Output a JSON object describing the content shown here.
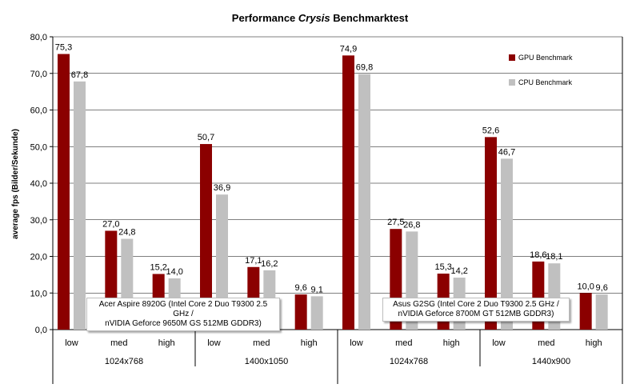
{
  "title_prefix": "Performance ",
  "title_em": "Crysis",
  "title_suffix": " Benchmarktest",
  "legend": [
    {
      "name": "GPU Benchmark",
      "color": "#8b0000"
    },
    {
      "name": "CPU Benchmark",
      "color": "#c0c0c0"
    }
  ],
  "notes": [
    {
      "line1": "Acer Aspire 8920G (Intel Core 2 Duo T9300 2.5 GHz /",
      "line2": "nVIDIA Geforce 9650M GS 512MB GDDR3)"
    },
    {
      "line1": "Asus G2SG (Intel Core 2 Duo T9300 2.5 GHz /",
      "line2": "nVIDIA Geforce 8700M GT 512MB GDDR3)"
    }
  ],
  "chart_data": {
    "type": "bar",
    "title": "Performance Crysis Benchmarktest",
    "ylabel": "average fps (Bilder/Sekunde)",
    "xlabel": "",
    "ylim": [
      0,
      80
    ],
    "yticks": [
      "0,0",
      "10,0",
      "20,0",
      "30,0",
      "40,0",
      "50,0",
      "60,0",
      "70,0",
      "80,0"
    ],
    "grid": true,
    "legend_position": "right",
    "categories": [
      "low",
      "med",
      "high",
      "low",
      "med",
      "high",
      "low",
      "med",
      "high",
      "low",
      "med",
      "high"
    ],
    "resolutions": [
      "1024x768",
      "1400x1050",
      "1024x768",
      "1440x900"
    ],
    "series": [
      {
        "name": "GPU Benchmark",
        "color": "#8b0000",
        "values": [
          75.3,
          27.0,
          15.2,
          50.7,
          17.1,
          9.6,
          74.9,
          27.5,
          15.3,
          52.6,
          18.6,
          10.0
        ],
        "labels": [
          "75,3",
          "27,0",
          "15,2",
          "50,7",
          "17,1",
          "9,6",
          "74,9",
          "27,5",
          "15,3",
          "52,6",
          "18,6",
          "10,0"
        ]
      },
      {
        "name": "CPU Benchmark",
        "color": "#c0c0c0",
        "values": [
          67.8,
          24.8,
          14.0,
          36.9,
          16.2,
          9.1,
          69.8,
          26.8,
          14.2,
          46.7,
          18.1,
          9.6
        ],
        "labels": [
          "67,8",
          "24,8",
          "14,0",
          "36,9",
          "16,2",
          "9,1",
          "69,8",
          "26,8",
          "14,2",
          "46,7",
          "18,1",
          "9,6"
        ]
      }
    ]
  }
}
